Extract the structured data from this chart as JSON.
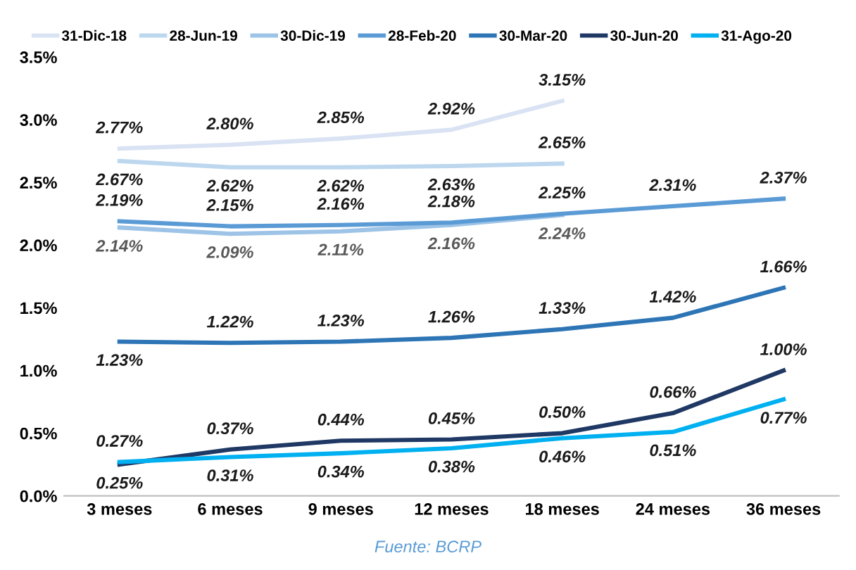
{
  "chart_data": {
    "type": "line",
    "categories": [
      "3 meses",
      "6 meses",
      "9 meses",
      "12 meses",
      "18 meses",
      "24 meses",
      "36 meses"
    ],
    "series": [
      {
        "name": "31-Dic-18",
        "color": "#dae3f3",
        "values": [
          2.77,
          2.8,
          2.85,
          2.92,
          3.15,
          null,
          null
        ],
        "value_labels": [
          "2.77%",
          "2.80%",
          "2.85%",
          "2.92%",
          "3.15%",
          null,
          null
        ]
      },
      {
        "name": "28-Jun-19",
        "color": "#bdd7ee",
        "values": [
          2.67,
          2.62,
          2.62,
          2.63,
          2.65,
          null,
          null
        ],
        "value_labels": [
          "2.67%",
          "2.62%",
          "2.62%",
          "2.63%",
          "2.65%",
          null,
          null
        ]
      },
      {
        "name": "30-Dic-19",
        "color": "#9dc3e6",
        "values": [
          2.14,
          2.09,
          2.11,
          2.16,
          2.24,
          null,
          null
        ],
        "value_labels": [
          "2.14%",
          "2.09%",
          "2.11%",
          "2.16%",
          "2.24%",
          null,
          null
        ]
      },
      {
        "name": "28-Feb-20",
        "color": "#5b9bd5",
        "values": [
          2.19,
          2.15,
          2.16,
          2.18,
          2.25,
          2.31,
          2.37
        ],
        "value_labels": [
          "2.19%",
          "2.15%",
          "2.16%",
          "2.18%",
          "2.25%",
          "2.31%",
          "2.37%"
        ]
      },
      {
        "name": "30-Mar-20",
        "color": "#2e75b6",
        "values": [
          1.23,
          1.22,
          1.23,
          1.26,
          1.33,
          1.42,
          1.66
        ],
        "value_labels": [
          "1.23%",
          "1.22%",
          "1.23%",
          "1.26%",
          "1.33%",
          "1.42%",
          "1.66%"
        ]
      },
      {
        "name": "30-Jun-20",
        "color": "#1f3864",
        "values": [
          0.25,
          0.37,
          0.44,
          0.45,
          0.5,
          0.66,
          1.0
        ],
        "value_labels": [
          "0.25%",
          "0.37%",
          "0.44%",
          "0.45%",
          "0.50%",
          "0.66%",
          "1.00%"
        ]
      },
      {
        "name": "31-Ago-20",
        "color": "#00b0f0",
        "values": [
          0.27,
          0.31,
          0.34,
          0.38,
          0.46,
          0.51,
          0.77
        ],
        "value_labels": [
          "0.27%",
          "0.31%",
          "0.34%",
          "0.38%",
          "0.46%",
          "0.51%",
          "0.77%"
        ]
      }
    ],
    "ylim": [
      0,
      3.5
    ],
    "yticks": [
      {
        "value": 0,
        "label": "0.0%"
      },
      {
        "value": 0.5,
        "label": "0.5%"
      },
      {
        "value": 1.0,
        "label": "1.0%"
      },
      {
        "value": 1.5,
        "label": "1.5%"
      },
      {
        "value": 2.0,
        "label": "2.0%"
      },
      {
        "value": 2.5,
        "label": "2.5%"
      },
      {
        "value": 3.0,
        "label": "3.0%"
      },
      {
        "value": 3.5,
        "label": "3.5%"
      }
    ],
    "grid": false,
    "legend": "top",
    "marker": "none",
    "line_style": "solid",
    "annotations": [
      "Fuente: BCRP"
    ]
  }
}
